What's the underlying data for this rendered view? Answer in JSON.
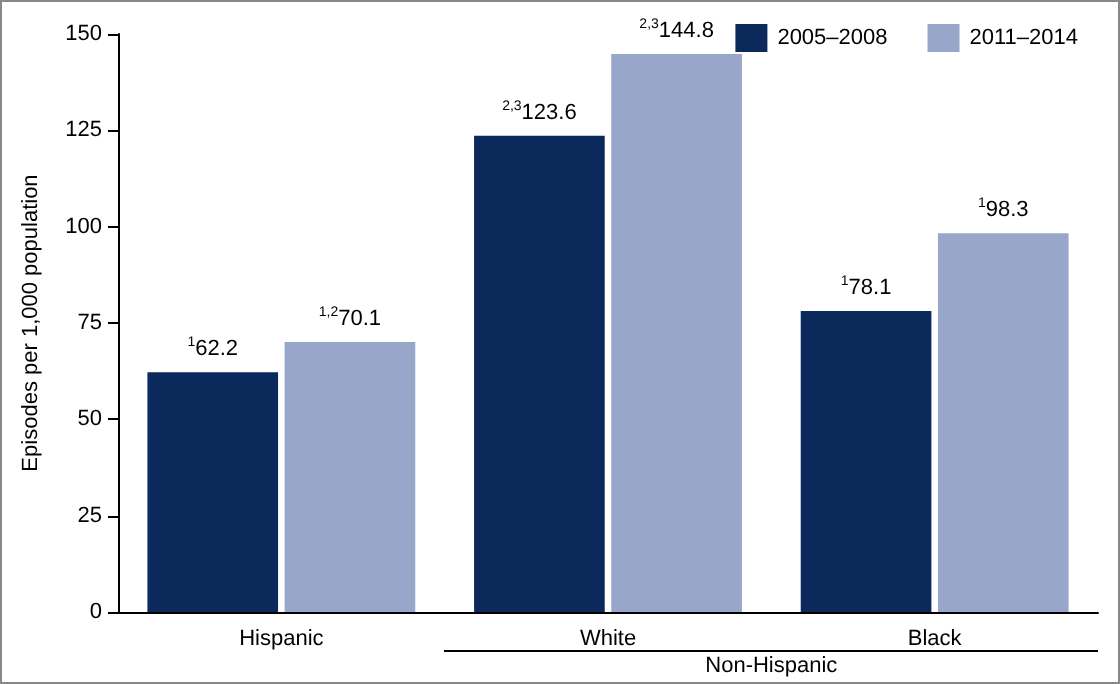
{
  "chart_data": {
    "type": "bar",
    "ylabel": "Episodes per 1,000 population",
    "categories": [
      "Hispanic",
      "White",
      "Black"
    ],
    "series": [
      {
        "name": "2005–2008",
        "color": "#0b2a5b",
        "values": [
          62.2,
          123.6,
          78.1
        ],
        "value_labels": [
          "$^{1}$62.2",
          "$^{2,3}$123.6",
          "$^{1}$78.1"
        ]
      },
      {
        "name": "2011–2014",
        "color": "#98a6c9",
        "values": [
          70.1,
          144.8,
          98.3
        ],
        "value_labels": [
          "$^{1,2}$70.1",
          "$^{2,3}$144.8",
          "$^{1}$98.3"
        ]
      }
    ],
    "ylim": [
      0,
      150
    ],
    "yticks": [
      0,
      25,
      50,
      75,
      100,
      125,
      150
    ],
    "grid": false,
    "legend": "top right",
    "annotations": [
      "Non-Hispanic"
    ]
  }
}
